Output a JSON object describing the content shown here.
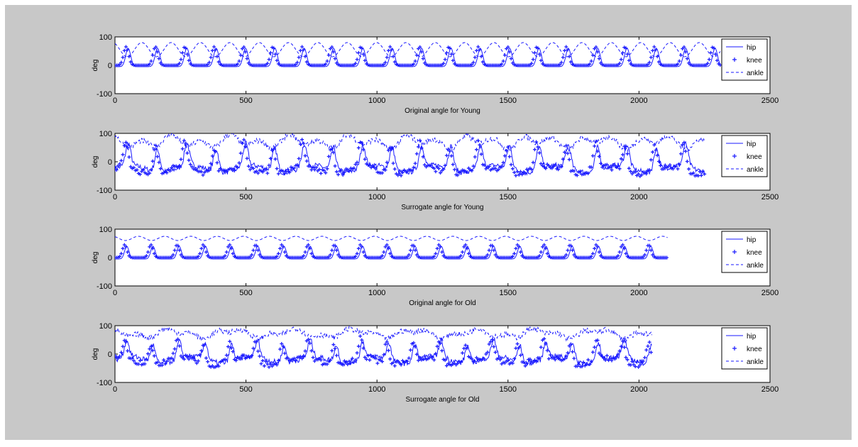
{
  "colors": {
    "frame_bg": "#c8c8c8",
    "plot_bg": "#ffffff",
    "series": "#1a1aff"
  },
  "chart_data": [
    {
      "type": "line",
      "title": "",
      "xlabel": "Original angle for Young",
      "ylabel": "deg",
      "xlim": [
        0,
        2500
      ],
      "ylim": [
        -100,
        100
      ],
      "xticks": [
        "0",
        "500",
        "1000",
        "1500",
        "2000",
        "2500"
      ],
      "yticks": [
        "100",
        "0",
        "-100"
      ],
      "legend": {
        "position": "right",
        "entries": [
          "hip",
          "knee",
          "ankle"
        ]
      },
      "series": [
        {
          "name": "hip",
          "style": "solid",
          "cycle_peaks_deg": [
            60,
            -5
          ],
          "x_end": 2310
        },
        {
          "name": "knee",
          "style": "plus-markers",
          "cycle_peaks_deg": [
            65,
            0
          ],
          "x_end": 2310
        },
        {
          "name": "ankle",
          "style": "dashed",
          "cycle_peaks_deg": [
            80,
            30
          ],
          "x_end": 2310
        }
      ],
      "approx_period": 112
    },
    {
      "type": "line",
      "title": "",
      "xlabel": "Surrogate angle for Young",
      "ylabel": "deg",
      "xlim": [
        0,
        2500
      ],
      "ylim": [
        -100,
        100
      ],
      "xticks": [
        "0",
        "500",
        "1000",
        "1500",
        "2000",
        "2500"
      ],
      "yticks": [
        "100",
        "0",
        "-100"
      ],
      "legend": {
        "position": "right",
        "entries": [
          "hip",
          "knee",
          "ankle"
        ]
      },
      "series": [
        {
          "name": "hip",
          "style": "solid",
          "cycle_peaks_deg": [
            55,
            -25
          ],
          "x_end": 2250
        },
        {
          "name": "knee",
          "style": "plus-markers",
          "cycle_peaks_deg": [
            60,
            -30
          ],
          "x_end": 2250
        },
        {
          "name": "ankle",
          "style": "dashed",
          "cycle_peaks_deg": [
            85,
            55
          ],
          "x_end": 2250
        }
      ],
      "approx_period": 112
    },
    {
      "type": "line",
      "title": "",
      "xlabel": "Original angle for Old",
      "ylabel": "deg",
      "xlim": [
        0,
        2500
      ],
      "ylim": [
        -100,
        100
      ],
      "xticks": [
        "0",
        "500",
        "1000",
        "1500",
        "2000",
        "2500"
      ],
      "yticks": [
        "100",
        "0",
        "-100"
      ],
      "legend": {
        "position": "right",
        "entries": [
          "hip",
          "knee",
          "ankle"
        ]
      },
      "series": [
        {
          "name": "hip",
          "style": "solid",
          "cycle_peaks_deg": [
            40,
            -5
          ],
          "x_end": 2110
        },
        {
          "name": "knee",
          "style": "plus-markers",
          "cycle_peaks_deg": [
            45,
            0
          ],
          "x_end": 2110
        },
        {
          "name": "ankle",
          "style": "dashed",
          "cycle_peaks_deg": [
            75,
            60
          ],
          "x_end": 2110
        }
      ],
      "approx_period": 100
    },
    {
      "type": "line",
      "title": "",
      "xlabel": "Surrogate angle for Old",
      "ylabel": "deg",
      "xlim": [
        0,
        2500
      ],
      "ylim": [
        -100,
        100
      ],
      "xticks": [
        "0",
        "500",
        "1000",
        "1500",
        "2000",
        "2500"
      ],
      "yticks": [
        "100",
        "0",
        "-100"
      ],
      "legend": {
        "position": "right",
        "entries": [
          "hip",
          "knee",
          "ankle"
        ]
      },
      "series": [
        {
          "name": "hip",
          "style": "solid",
          "cycle_peaks_deg": [
            40,
            -20
          ],
          "x_end": 2050
        },
        {
          "name": "knee",
          "style": "plus-markers",
          "cycle_peaks_deg": [
            45,
            -25
          ],
          "x_end": 2050
        },
        {
          "name": "ankle",
          "style": "dashed",
          "cycle_peaks_deg": [
            80,
            65
          ],
          "x_end": 2050
        }
      ],
      "approx_period": 100
    }
  ]
}
